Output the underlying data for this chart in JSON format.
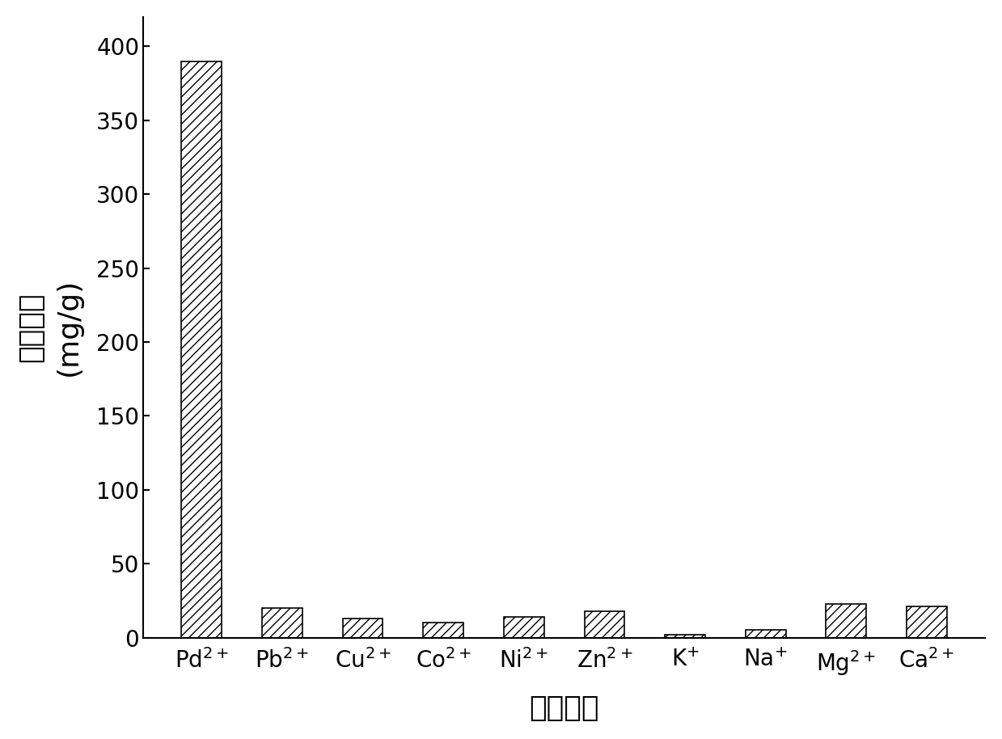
{
  "categories_base": [
    "Pd",
    "Pb",
    "Cu",
    "Co",
    "Ni",
    "Zn",
    "K",
    "Na",
    "Mg",
    "Ca"
  ],
  "superscripts": [
    "2+",
    "2+",
    "2+",
    "2+",
    "2+",
    "2+",
    "+",
    "+",
    "2+",
    "2+"
  ],
  "values": [
    390,
    20,
    13,
    10,
    14,
    18,
    2,
    5,
    23,
    21
  ],
  "ylabel_chinese": "吸附容量",
  "ylabel_units": "(mg/g)",
  "xlabel": "金属离子",
  "ylim": [
    0,
    420
  ],
  "yticks": [
    0,
    50,
    100,
    150,
    200,
    250,
    300,
    350,
    400
  ],
  "bar_color": "#ffffff",
  "bar_edgecolor": "#000000",
  "hatch": "///",
  "background_color": "#ffffff",
  "label_fontsize": 26,
  "tick_fontsize": 20,
  "bar_width": 0.5
}
